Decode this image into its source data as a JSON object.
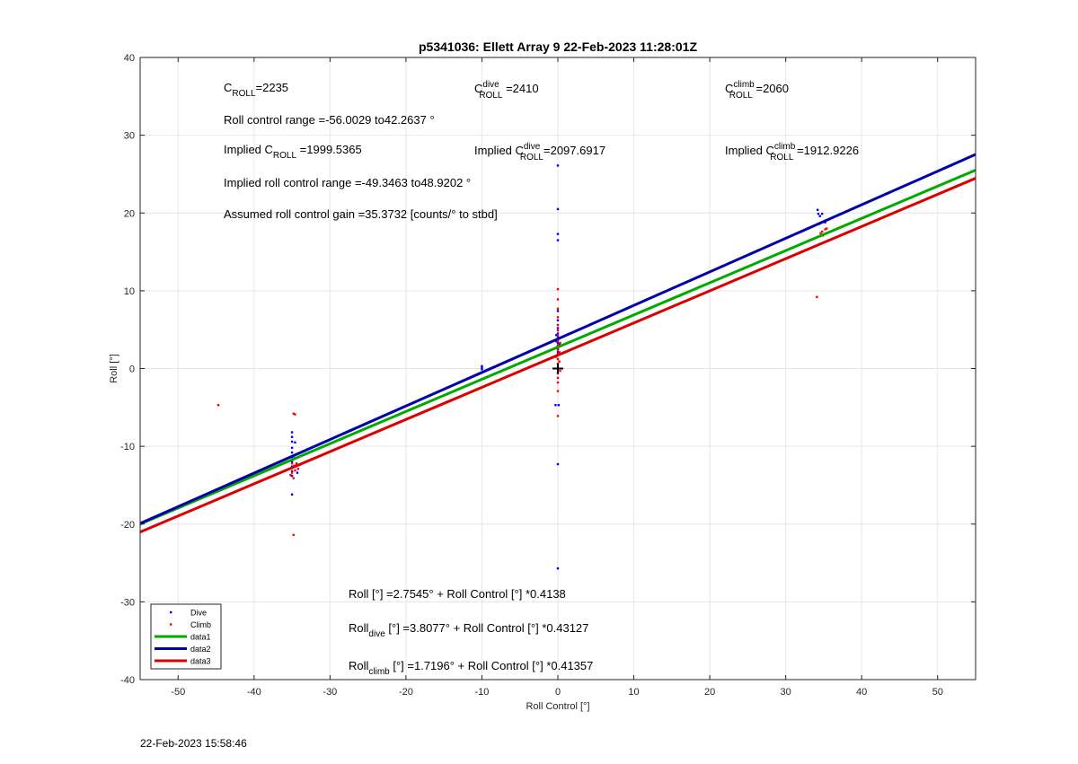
{
  "chart_data": {
    "type": "scatter",
    "title": "p5341036: Ellett Array 9 22-Feb-2023 11:28:01Z",
    "xlabel": "Roll Control [°]",
    "ylabel": "Roll [°]",
    "xlim": [
      -55,
      55
    ],
    "ylim": [
      -40,
      40
    ],
    "xticks": [
      -50,
      -40,
      -30,
      -20,
      -10,
      0,
      10,
      20,
      30,
      40,
      50
    ],
    "yticks": [
      -40,
      -30,
      -20,
      -10,
      0,
      10,
      20,
      30,
      40
    ],
    "grid": true,
    "legend_position": "bottom-left",
    "legend": [
      {
        "label": "Dive",
        "kind": "marker",
        "color": "#0000ff"
      },
      {
        "label": "Climb",
        "kind": "marker",
        "color": "#ff0000"
      },
      {
        "label": "data1",
        "kind": "line",
        "color": "#00aa00"
      },
      {
        "label": "data2",
        "kind": "line",
        "color": "#0000aa"
      },
      {
        "label": "data3",
        "kind": "line",
        "color": "#dd0000"
      }
    ],
    "series": [
      {
        "name": "Dive",
        "kind": "scatter",
        "color": "#0000ff",
        "points": [
          [
            -35,
            -8.2
          ],
          [
            -35,
            -8.8
          ],
          [
            -35,
            -9.4
          ],
          [
            -35,
            -10.2
          ],
          [
            -35,
            -10.8
          ],
          [
            -35,
            -11.4
          ],
          [
            -35,
            -12
          ],
          [
            -35,
            -12.6
          ],
          [
            -35,
            -13.2
          ],
          [
            -35,
            -13.8
          ],
          [
            -35,
            -16.2
          ],
          [
            -34.6,
            -9.5
          ],
          [
            -34.6,
            -11.5
          ],
          [
            -34.4,
            -12.4
          ],
          [
            -34.3,
            -13.4
          ],
          [
            -10,
            -0.1
          ],
          [
            -10,
            0.1
          ],
          [
            -10,
            0.3
          ],
          [
            0,
            26.1
          ],
          [
            0,
            20.5
          ],
          [
            0,
            17.3
          ],
          [
            0,
            16.5
          ],
          [
            0,
            7.4
          ],
          [
            0,
            6.2
          ],
          [
            0,
            5.2
          ],
          [
            0,
            4.5
          ],
          [
            0,
            4.1
          ],
          [
            0,
            3.7
          ],
          [
            0,
            3.3
          ],
          [
            0,
            2.9
          ],
          [
            0,
            2.5
          ],
          [
            0,
            2.1
          ],
          [
            0,
            1.8
          ],
          [
            -0.2,
            4.3
          ],
          [
            -0.2,
            3.5
          ],
          [
            0.2,
            3.9
          ],
          [
            0.2,
            3.1
          ],
          [
            -0.3,
            -4.7
          ],
          [
            0.1,
            -4.7
          ],
          [
            0,
            -12.3
          ],
          [
            0,
            -25.7
          ],
          [
            34.2,
            20.4
          ],
          [
            34.3,
            19.9
          ],
          [
            34.5,
            19.6
          ],
          [
            34.8,
            19.9
          ],
          [
            34.4,
            18.6
          ],
          [
            35.2,
            18.8
          ]
        ]
      },
      {
        "name": "Climb",
        "kind": "scatter",
        "color": "#ff0000",
        "points": [
          [
            -44.7,
            -4.7
          ],
          [
            -34.8,
            -5.8
          ],
          [
            -34.6,
            -5.9
          ],
          [
            -35,
            -12.2
          ],
          [
            -35,
            -12.8
          ],
          [
            -35,
            -13.4
          ],
          [
            -34.7,
            -12.5
          ],
          [
            -34.6,
            -13.1
          ],
          [
            -34.4,
            -12.2
          ],
          [
            -34.2,
            -12.9
          ],
          [
            -34,
            -12.4
          ],
          [
            -35.2,
            -13.7
          ],
          [
            -34.8,
            -14.1
          ],
          [
            -34.8,
            -21.4
          ],
          [
            0,
            10.2
          ],
          [
            0,
            8.9
          ],
          [
            0,
            7.7
          ],
          [
            0,
            6.6
          ],
          [
            0,
            5.6
          ],
          [
            0,
            4.9
          ],
          [
            0,
            4.2
          ],
          [
            0,
            3.6
          ],
          [
            0,
            3
          ],
          [
            0,
            2.4
          ],
          [
            0,
            1.8
          ],
          [
            0,
            1.2
          ],
          [
            0,
            0.6
          ],
          [
            0,
            0
          ],
          [
            0,
            -0.6
          ],
          [
            0,
            -1.2
          ],
          [
            0,
            -1.8
          ],
          [
            0,
            -2.9
          ],
          [
            0,
            -6.1
          ],
          [
            -0.2,
            2.7
          ],
          [
            -0.2,
            1.5
          ],
          [
            0.2,
            2.1
          ],
          [
            0.2,
            0.9
          ],
          [
            0.3,
            3.3
          ],
          [
            0.3,
            -0.3
          ],
          [
            34.8,
            17.6
          ],
          [
            34.9,
            17.1
          ],
          [
            35.2,
            17.9
          ],
          [
            34.6,
            17.4
          ],
          [
            35.4,
            18
          ],
          [
            34.1,
            9.2
          ]
        ]
      },
      {
        "name": "data1",
        "kind": "line",
        "color": "#00aa00",
        "intercept": 2.7545,
        "slope": 0.4138
      },
      {
        "name": "data2",
        "kind": "line",
        "color": "#0000aa",
        "intercept": 3.8077,
        "slope": 0.43127
      },
      {
        "name": "data3",
        "kind": "line",
        "color": "#dd0000",
        "intercept": 1.7196,
        "slope": 0.41357
      }
    ],
    "origin_marker": [
      0,
      0
    ],
    "annotations": {
      "c_roll": {
        "main": "C",
        "sub": "ROLL",
        "value": "=2235"
      },
      "c_roll_dive": {
        "main": "C",
        "sup": "dive",
        "sub": "ROLL",
        "value": " =2410"
      },
      "c_roll_climb": {
        "main": "C",
        "sup": "climb",
        "sub": "ROLL",
        "value": " =2060"
      },
      "roll_range": "Roll control range =-56.0029 to42.2637 °",
      "implied_c_roll": {
        "prefix": "Implied C",
        "sub": "ROLL",
        "value": " =1999.5365"
      },
      "implied_c_roll_dive": {
        "prefix": "Implied C",
        "sup": "dive",
        "sub": "ROLL",
        "value": "=2097.6917"
      },
      "implied_c_roll_climb": {
        "prefix": "Implied C",
        "sup": "climb",
        "sub": "ROLL",
        "value": " =1912.9226"
      },
      "implied_range": "Implied roll control range =-49.3463 to48.9202 °",
      "gain": "Assumed roll control gain =35.3732 [counts/° to stbd]",
      "fit_all": "Roll [°] =2.7545° + Roll Control [°] *0.4138",
      "fit_dive": {
        "prefix": "Roll",
        "sub": "dive",
        "value": " [°] =3.8077° + Roll Control [°] *0.43127"
      },
      "fit_climb": {
        "prefix": "Roll",
        "sub": "climb",
        "value": " [°] =1.7196° + Roll Control [°] *0.41357"
      }
    }
  },
  "footer_timestamp": "22-Feb-2023 15:58:46"
}
